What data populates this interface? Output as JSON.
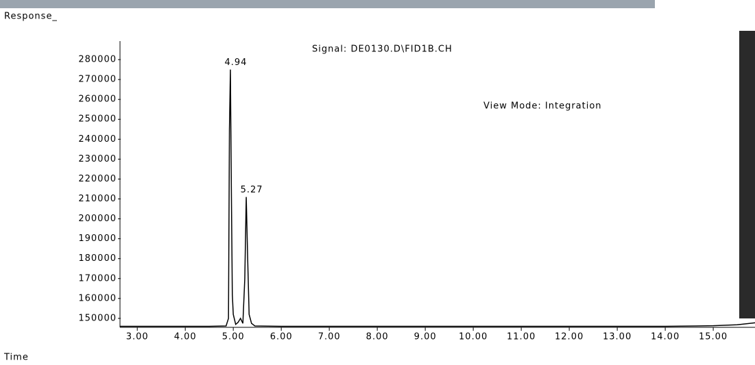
{
  "chart_data": {
    "type": "line",
    "title": "Signal: DE0130.D\\FID1B.CH",
    "annotation": "View Mode: Integration",
    "annotation_color": "#8c8c00",
    "y_label": "Response_",
    "x_label": "Time",
    "peaks": [
      4.94,
      5.27
    ],
    "x": [
      2.64,
      3.5,
      4.5,
      4.85,
      4.9,
      4.92,
      4.94,
      4.96,
      4.98,
      5.0,
      5.05,
      5.1,
      5.15,
      5.2,
      5.24,
      5.27,
      5.3,
      5.33,
      5.38,
      5.45,
      6.0,
      8.0,
      10.0,
      12.0,
      14.0,
      15.0,
      15.5,
      15.87
    ],
    "values": [
      146000,
      146000,
      146000,
      146200,
      150000,
      245000,
      275000,
      215000,
      162000,
      152000,
      147000,
      148000,
      150000,
      147500,
      170000,
      211000,
      180000,
      152000,
      147500,
      146200,
      146000,
      146000,
      146000,
      146000,
      146000,
      146300,
      146800,
      147800
    ],
    "color": "#000000",
    "xlim": [
      2.64,
      15.87
    ],
    "ylim": [
      145500,
      285000
    ],
    "yticks": [
      150000,
      160000,
      170000,
      180000,
      190000,
      200000,
      210000,
      220000,
      230000,
      240000,
      250000,
      260000,
      270000,
      280000
    ],
    "xticks": [
      {
        "value": 3,
        "label": "3.00"
      },
      {
        "value": 4,
        "label": "4.00"
      },
      {
        "value": 5,
        "label": "5.00"
      },
      {
        "value": 6,
        "label": "6.00"
      },
      {
        "value": 7,
        "label": "7.00"
      },
      {
        "value": 8,
        "label": "8.00"
      },
      {
        "value": 9,
        "label": "9.00"
      },
      {
        "value": 10,
        "label": "10.00"
      },
      {
        "value": 11,
        "label": "11.00"
      },
      {
        "value": 12,
        "label": "12.00"
      },
      {
        "value": 13,
        "label": "13.00"
      },
      {
        "value": 14,
        "label": "14.00"
      },
      {
        "value": 15,
        "label": "15.00"
      }
    ]
  }
}
